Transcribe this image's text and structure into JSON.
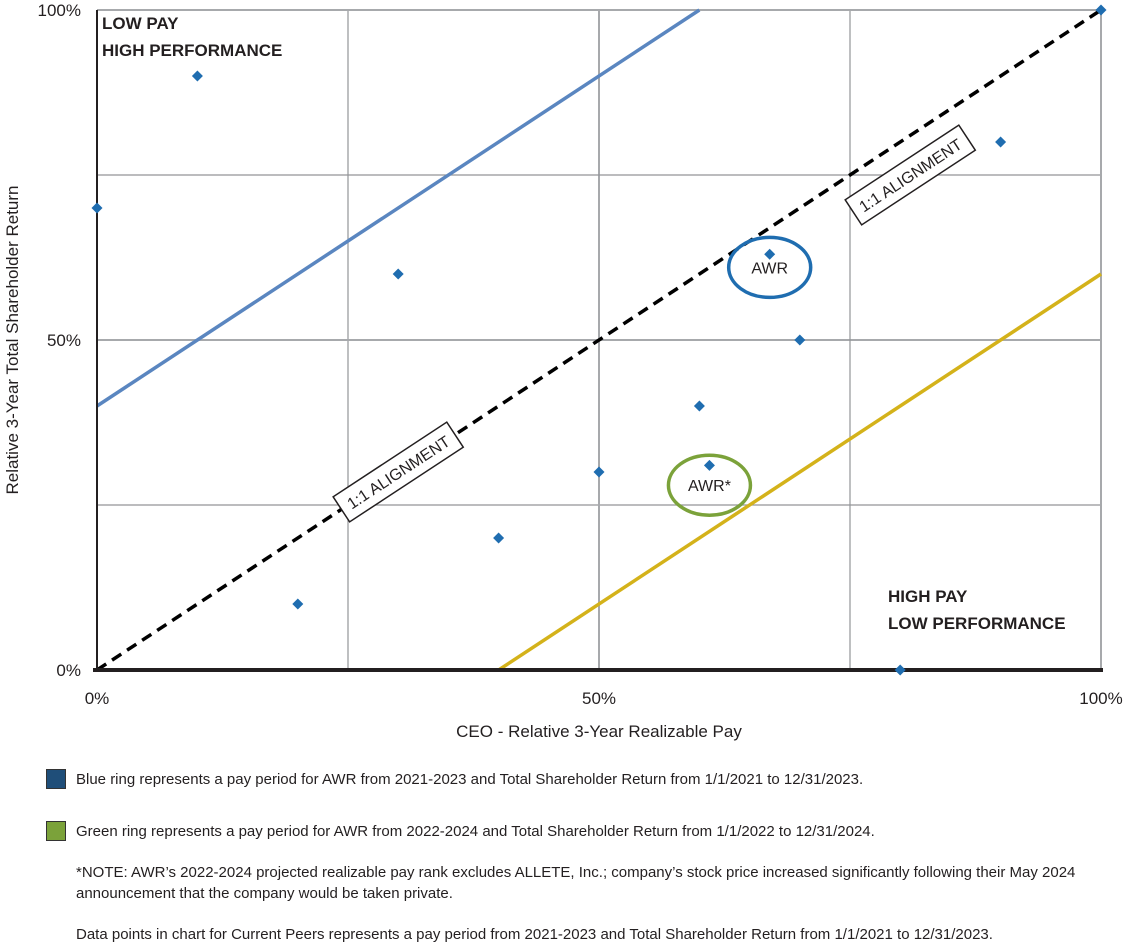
{
  "chart_data": {
    "type": "scatter",
    "xlabel": "CEO - Relative 3-Year Realizable Pay",
    "ylabel": "Relative 3-Year Total Shareholder Return",
    "xlim": [
      0,
      100
    ],
    "ylim": [
      0,
      100
    ],
    "x_ticks": [
      {
        "value": 0,
        "label": "0%"
      },
      {
        "value": 50,
        "label": "50%"
      },
      {
        "value": 100,
        "label": "100%"
      }
    ],
    "y_ticks": [
      {
        "value": 0,
        "label": "0%"
      },
      {
        "value": 50,
        "label": "50%"
      },
      {
        "value": 100,
        "label": "100%"
      }
    ],
    "grid": true,
    "gridlines": [
      25,
      50,
      75,
      100
    ],
    "points_color": "#1f6db0",
    "points": [
      {
        "x": 0,
        "y": 70
      },
      {
        "x": 10,
        "y": 90
      },
      {
        "x": 20,
        "y": 10
      },
      {
        "x": 30,
        "y": 60
      },
      {
        "x": 40,
        "y": 20
      },
      {
        "x": 50,
        "y": 30
      },
      {
        "x": 60,
        "y": 40
      },
      {
        "x": 61,
        "y": 31
      },
      {
        "x": 67,
        "y": 63
      },
      {
        "x": 70,
        "y": 50
      },
      {
        "x": 80,
        "y": 0
      },
      {
        "x": 90,
        "y": 80
      },
      {
        "x": 100,
        "y": 100
      }
    ],
    "lines": [
      {
        "name": "alignment",
        "color": "#000000",
        "dashed": true,
        "x": [
          0,
          100
        ],
        "y": [
          0,
          100
        ]
      },
      {
        "name": "upper-band",
        "color": "#5a86c0",
        "dashed": false,
        "x": [
          0,
          60
        ],
        "y": [
          40,
          100
        ]
      },
      {
        "name": "lower-band",
        "color": "#d4b21a",
        "dashed": false,
        "x": [
          40,
          100
        ],
        "y": [
          0,
          60
        ]
      }
    ],
    "alignment_labels": [
      {
        "text": "1:1 ALIGNMENT",
        "x": 30,
        "y": 30
      },
      {
        "text": "1:1 ALIGNMENT",
        "x": 81,
        "y": 75
      }
    ],
    "annotations": [
      {
        "text": "AWR",
        "x": 67,
        "y": 61,
        "ring_color": "#1f6db0"
      },
      {
        "text": "AWR*",
        "x": 61,
        "y": 28,
        "ring_color": "#7ba23a"
      }
    ],
    "quadrant_labels": [
      {
        "lines": [
          "LOW PAY",
          "HIGH PERFORMANCE"
        ],
        "position": "top-left"
      },
      {
        "lines": [
          "HIGH PAY",
          "LOW PERFORMANCE"
        ],
        "position": "bottom-right"
      }
    ]
  },
  "legend": [
    {
      "color": "#1f4e79",
      "text": "Blue ring represents a pay period for AWR from 2021-2023 and Total Shareholder Return from 1/1/2021 to 12/31/2023."
    },
    {
      "color": "#7ba23a",
      "text": "Green ring represents a pay period for AWR from 2022-2024 and Total Shareholder Return from 1/1/2022 to 12/31/2024."
    }
  ],
  "notes": [
    "*NOTE: AWR’s 2022-2024 projected realizable pay rank excludes ALLETE, Inc.; company’s stock price increased significantly following their May 2024 announcement that the company would be taken private.",
    "Data points in chart for Current Peers represents a pay period from 2021-2023 and Total Shareholder Return from 1/1/2021 to 12/31/2023."
  ]
}
